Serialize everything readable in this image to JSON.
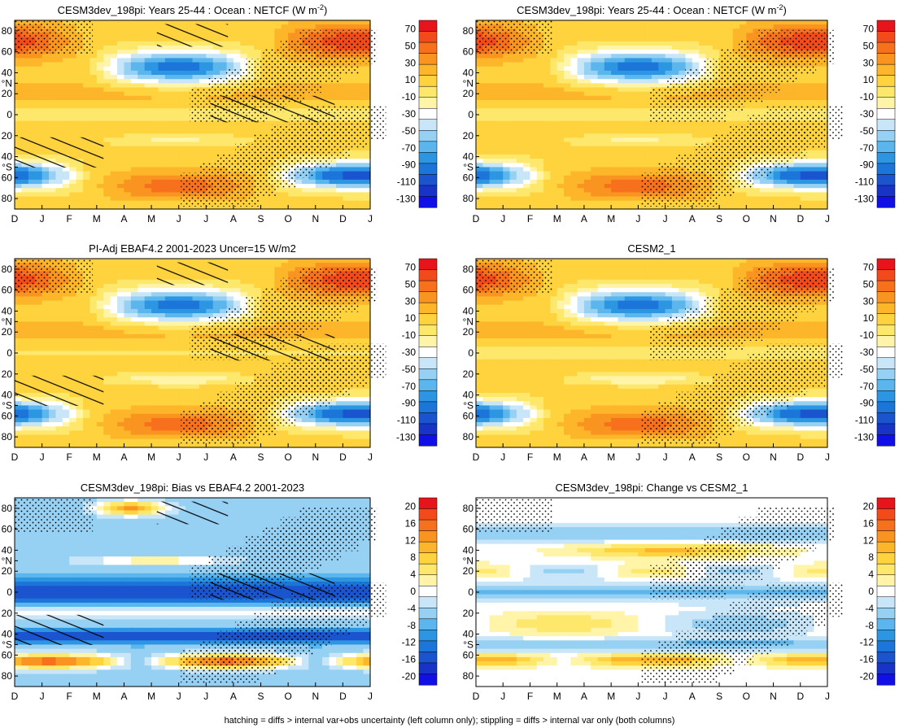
{
  "figure": {
    "footnote": "hatching = diffs > internal var+obs uncertainty (left column only); stippling = diffs > internal var only (both columns)"
  },
  "axes": {
    "months": [
      "D",
      "J",
      "F",
      "M",
      "A",
      "M",
      "J",
      "J",
      "A",
      "S",
      "O",
      "N",
      "D",
      "J"
    ],
    "lat_ticks": [
      "80",
      "60",
      "40",
      "°N",
      "20",
      "0",
      "20",
      "40",
      "°S",
      "60",
      "80"
    ]
  },
  "colorbars": {
    "abs": {
      "labels": [
        "70",
        "50",
        "30",
        "10",
        "-10",
        "-30",
        "-50",
        "-70",
        "-90",
        "-110",
        "-130"
      ],
      "colors": [
        "#e8141b",
        "#f34a1b",
        "#f7711d",
        "#fa9420",
        "#fdb52a",
        "#fed33e",
        "#fee86c",
        "#fff4a8",
        "#ffffff",
        "#c8e6f8",
        "#96d0f2",
        "#5ab6ec",
        "#2d96e3",
        "#1c75d8",
        "#1a54cf",
        "#1834c6",
        "#1010e6"
      ]
    },
    "diff": {
      "labels": [
        "20",
        "16",
        "12",
        "8",
        "4",
        "0",
        "-4",
        "-8",
        "-12",
        "-16",
        "-20"
      ],
      "colors": [
        "#e8141b",
        "#f34a1b",
        "#f7711d",
        "#fa9420",
        "#fdb52a",
        "#fed33e",
        "#fee86c",
        "#fff4a8",
        "#ffffff",
        "#c8e6f8",
        "#96d0f2",
        "#5ab6ec",
        "#2d96e3",
        "#1c75d8",
        "#1a54cf",
        "#1834c6",
        "#1010e6"
      ]
    }
  },
  "chart_data": [
    {
      "type": "heatmap",
      "title": "CESM3dev_198pi: Years 25-44 : Ocean : NETCF (W m",
      "title_sup": "-2",
      "title_end": ")",
      "x": [
        "D",
        "J",
        "F",
        "M",
        "A",
        "M",
        "J",
        "J",
        "A",
        "S",
        "O",
        "N",
        "D",
        "J"
      ],
      "y_range": [
        -90,
        90
      ],
      "colorbar": "abs",
      "field": "model",
      "hatching": true,
      "stippling": true
    },
    {
      "type": "heatmap",
      "title": "CESM3dev_198pi: Years 25-44 : Ocean : NETCF (W m",
      "title_sup": "-2",
      "title_end": ")",
      "x": [
        "D",
        "J",
        "F",
        "M",
        "A",
        "M",
        "J",
        "J",
        "A",
        "S",
        "O",
        "N",
        "D",
        "J"
      ],
      "y_range": [
        -90,
        90
      ],
      "colorbar": "abs",
      "field": "model",
      "hatching": false,
      "stippling": true
    },
    {
      "type": "heatmap",
      "title": "PI-Adj EBAF4.2 2001-2023 Uncer=15 W/m2",
      "title_sup": "",
      "title_end": "",
      "x": [
        "D",
        "J",
        "F",
        "M",
        "A",
        "M",
        "J",
        "J",
        "A",
        "S",
        "O",
        "N",
        "D",
        "J"
      ],
      "y_range": [
        -90,
        90
      ],
      "colorbar": "abs",
      "field": "obs",
      "hatching": true,
      "stippling": true
    },
    {
      "type": "heatmap",
      "title": "CESM2_1",
      "title_sup": "",
      "title_end": "",
      "x": [
        "D",
        "J",
        "F",
        "M",
        "A",
        "M",
        "J",
        "J",
        "A",
        "S",
        "O",
        "N",
        "D",
        "J"
      ],
      "y_range": [
        -90,
        90
      ],
      "colorbar": "abs",
      "field": "cesm2",
      "hatching": false,
      "stippling": true
    },
    {
      "type": "heatmap",
      "title": "CESM3dev_198pi: Bias vs EBAF4.2 2001-2023",
      "title_sup": "",
      "title_end": "",
      "x": [
        "D",
        "J",
        "F",
        "M",
        "A",
        "M",
        "J",
        "J",
        "A",
        "S",
        "O",
        "N",
        "D",
        "J"
      ],
      "y_range": [
        -90,
        90
      ],
      "colorbar": "diff",
      "field": "bias",
      "hatching": true,
      "stippling": true
    },
    {
      "type": "heatmap",
      "title": "CESM3dev_198pi: Change vs CESM2_1",
      "title_sup": "",
      "title_end": "",
      "x": [
        "D",
        "J",
        "F",
        "M",
        "A",
        "M",
        "J",
        "J",
        "A",
        "S",
        "O",
        "N",
        "D",
        "J"
      ],
      "y_range": [
        -90,
        90
      ],
      "colorbar": "diff",
      "field": "change",
      "hatching": false,
      "stippling": true
    }
  ]
}
